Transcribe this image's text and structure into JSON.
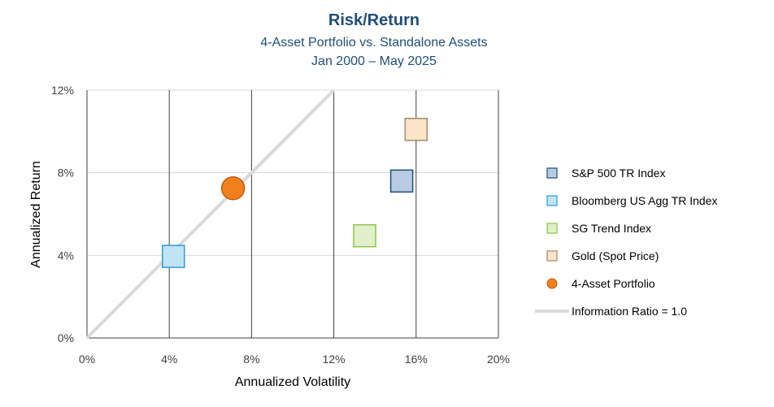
{
  "chart_data": {
    "type": "scatter",
    "title": "Risk/Return",
    "subtitle_line1": "4-Asset Portfolio vs. Standalone Assets",
    "subtitle_line2": "Jan 2000 – May 2025",
    "xlabel": "Annualized Volatility",
    "ylabel": "Annualized Return",
    "xlim": [
      0,
      20
    ],
    "ylim": [
      0,
      12
    ],
    "x_ticks": [
      {
        "value": 0,
        "label": "0%"
      },
      {
        "value": 4,
        "label": "4%"
      },
      {
        "value": 8,
        "label": "8%"
      },
      {
        "value": 12,
        "label": "12%"
      },
      {
        "value": 16,
        "label": "16%"
      },
      {
        "value": 20,
        "label": "20%"
      }
    ],
    "y_ticks": [
      {
        "value": 0,
        "label": "0%"
      },
      {
        "value": 4,
        "label": "4%"
      },
      {
        "value": 8,
        "label": "8%"
      },
      {
        "value": 12,
        "label": "12%"
      }
    ],
    "grid": true,
    "legend_position": "right",
    "series": [
      {
        "name": "S&P 500 TR Index",
        "marker": "square",
        "fill": "#b8cce4",
        "stroke": "#1f4e79",
        "x": 15.3,
        "y": 7.6
      },
      {
        "name": "Bloomberg US Agg TR Index",
        "marker": "square",
        "fill": "#bfe4f4",
        "stroke": "#2e9bd6",
        "x": 4.2,
        "y": 3.95
      },
      {
        "name": "SG Trend Index",
        "marker": "square",
        "fill": "#e2efcb",
        "stroke": "#8dc63f",
        "x": 13.5,
        "y": 4.95
      },
      {
        "name": "Gold (Spot Price)",
        "marker": "square",
        "fill": "#fbe5c8",
        "stroke": "#a08868",
        "x": 16.0,
        "y": 10.1
      },
      {
        "name": "4-Asset Portfolio",
        "marker": "circle",
        "fill": "#f07f1e",
        "stroke": "#c55a11",
        "x": 7.1,
        "y": 7.25
      }
    ],
    "reference_line": {
      "name": "Information Ratio = 1.0",
      "color": "#d9d9d9",
      "points": [
        [
          0,
          0
        ],
        [
          12,
          12
        ]
      ]
    },
    "colors": {
      "title": "#1f4e79",
      "subtitle": "#1f4e79",
      "major_gridline": "#404040",
      "minor_gridline": "#d9d9d9"
    }
  }
}
